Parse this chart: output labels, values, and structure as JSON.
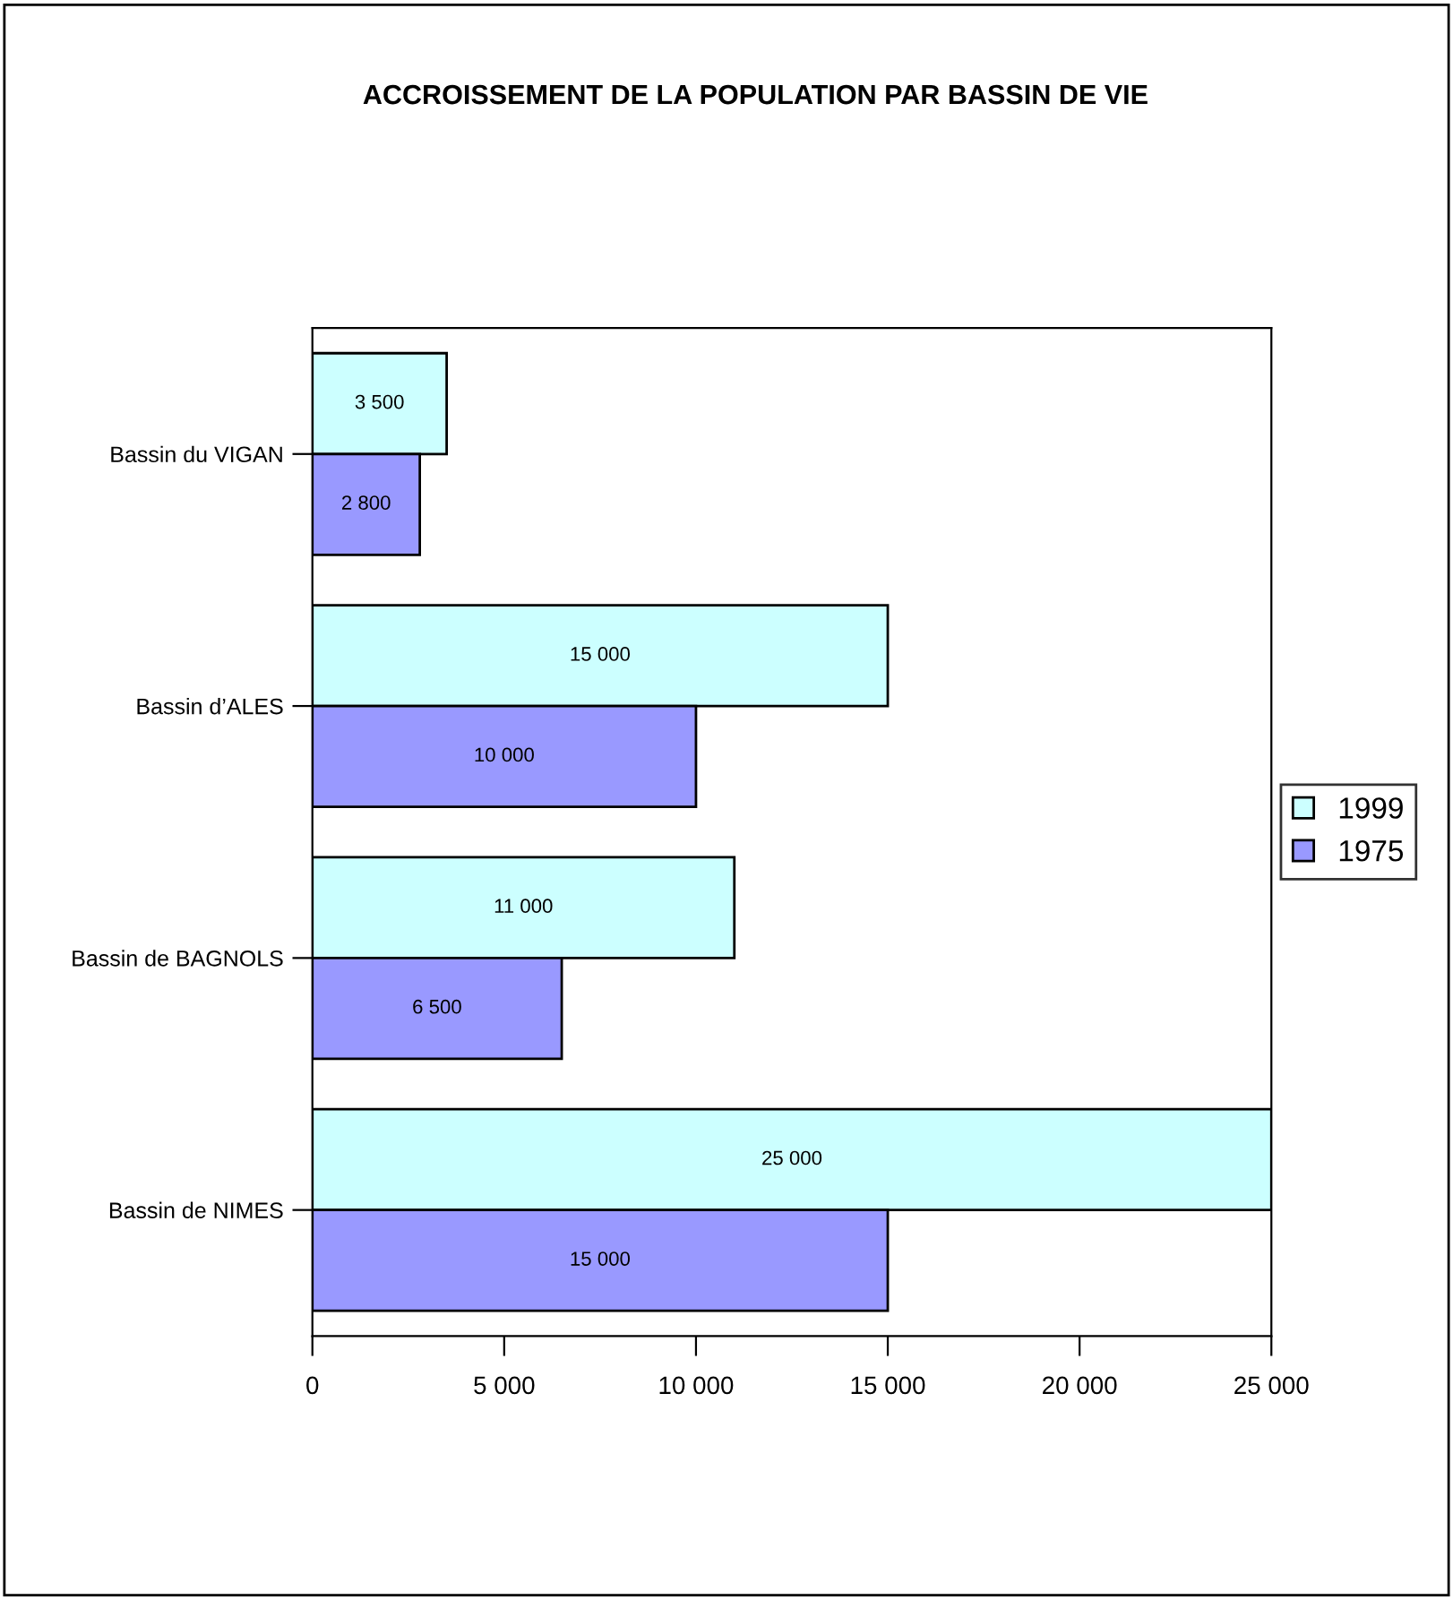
{
  "chart_data": {
    "type": "bar",
    "orientation": "horizontal",
    "title": "ACCROISSEMENT DE LA POPULATION PAR BASSIN DE VIE",
    "categories": [
      "Bassin du VIGAN",
      "Bassin d’ALES",
      "Bassin de BAGNOLS",
      "Bassin de NIMES"
    ],
    "series": [
      {
        "name": "1999",
        "color": "#ccffff",
        "values": [
          3500,
          15000,
          11000,
          25000
        ],
        "value_labels": [
          "3 500",
          "15 000",
          "11 000",
          "25 000"
        ]
      },
      {
        "name": "1975",
        "color": "#9999ff",
        "values": [
          2800,
          10000,
          6500,
          15000
        ],
        "value_labels": [
          "2 800",
          "10 000",
          "6 500",
          "15 000"
        ]
      }
    ],
    "xlim": [
      0,
      25000
    ],
    "xticks": [
      0,
      {
        "value": 5000,
        "label": "5 000"
      },
      {
        "value": 10000,
        "label": "10 000"
      },
      {
        "value": 15000,
        "label": "15 000"
      },
      {
        "value": 20000,
        "label": "20 000"
      },
      {
        "value": 25000,
        "label": "25 000"
      }
    ],
    "grid": false,
    "legend": "right"
  }
}
